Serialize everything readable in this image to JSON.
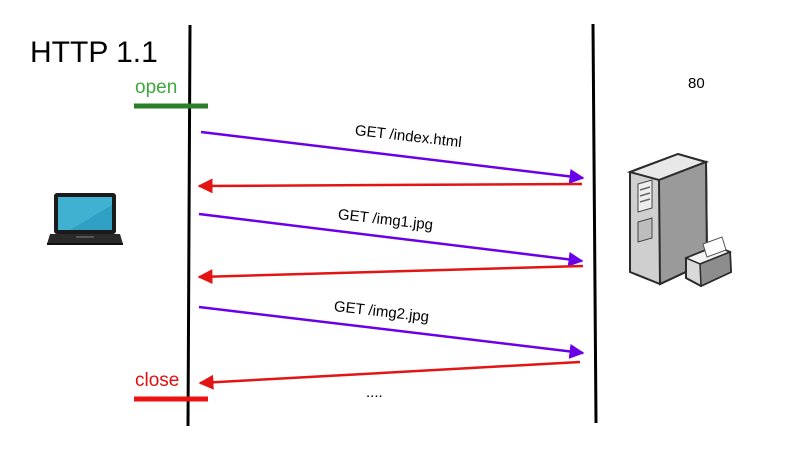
{
  "diagram": {
    "title": "HTTP 1.1",
    "open_label": "open",
    "close_label": "close",
    "port_label": "80",
    "messages": [
      {
        "label": "GET /index.html"
      },
      {
        "label": "GET /img1.jpg"
      },
      {
        "label": "GET /img2.jpg"
      }
    ],
    "ellipsis": "....",
    "colors": {
      "request_arrow": "#6a00e8",
      "response_arrow": "#e31414",
      "open_bar": "#2a7f2a",
      "close_bar": "#ee1111",
      "lifeline": "#000000"
    },
    "icons": {
      "client": "laptop-icon",
      "server": "server-tower-icon"
    }
  }
}
